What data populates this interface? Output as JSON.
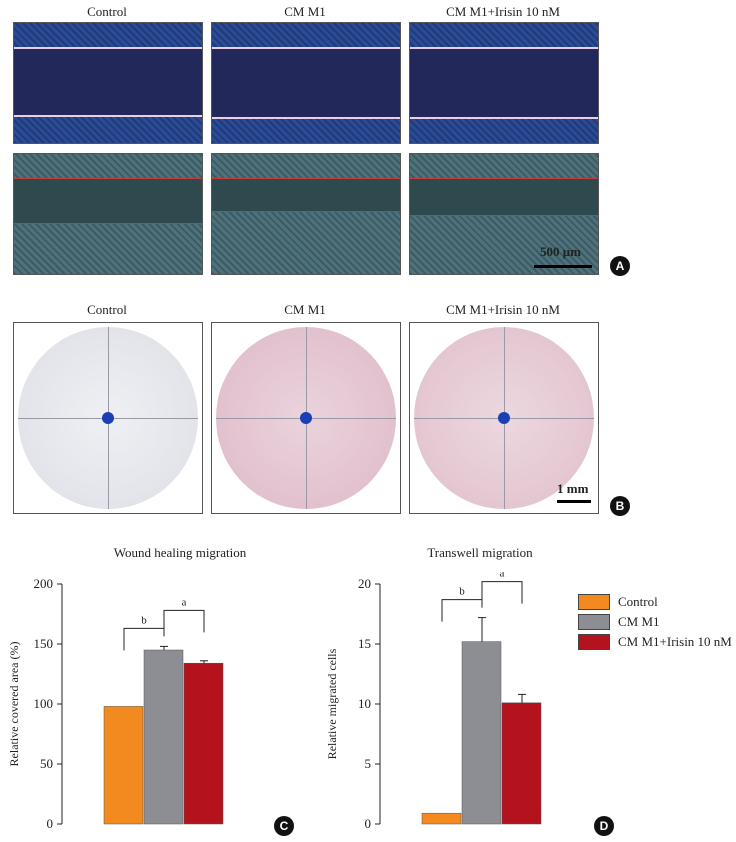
{
  "panel_A": {
    "titles": [
      "Control",
      "CM M1",
      "CM M1+Irisin 10 nM"
    ],
    "scalebar": "500 μm",
    "badge": "A"
  },
  "panel_B": {
    "titles": [
      "Control",
      "CM M1",
      "CM M1+Irisin 10 nM"
    ],
    "scalebar": "1 mm",
    "badge": "B"
  },
  "legend": [
    "Control",
    "CM M1",
    "CM M1+Irisin 10 nM"
  ],
  "colors": {
    "control": "#f28a1f",
    "cm_m1": "#8c8e93",
    "irisin": "#b4121d"
  },
  "chart_data": [
    {
      "type": "bar",
      "title": "Wound healing migration",
      "ylabel": "Relative covered area (%)",
      "categories": [
        "Control",
        "CM M1",
        "CM M1+Irisin 10 nM"
      ],
      "values": [
        98,
        145,
        134
      ],
      "errors": [
        0,
        3,
        2
      ],
      "ylim": [
        0,
        200
      ],
      "yticks": [
        0,
        50,
        100,
        150,
        200
      ],
      "significance": [
        {
          "label": "b",
          "pair": [
            0,
            1
          ]
        },
        {
          "label": "a",
          "pair": [
            1,
            2
          ]
        }
      ],
      "badge": "C"
    },
    {
      "type": "bar",
      "title": "Transwell migration",
      "ylabel": "Relative migrated cells",
      "categories": [
        "Control",
        "CM M1",
        "CM M1+Irisin 10 nM"
      ],
      "values": [
        0.9,
        15.2,
        10.1
      ],
      "errors": [
        0,
        2.0,
        0.7
      ],
      "ylim": [
        0,
        20
      ],
      "yticks": [
        0,
        5,
        10,
        15,
        20
      ],
      "significance": [
        {
          "label": "b",
          "pair": [
            0,
            1
          ]
        },
        {
          "label": "a",
          "pair": [
            1,
            2
          ]
        }
      ],
      "badge": "D"
    }
  ]
}
